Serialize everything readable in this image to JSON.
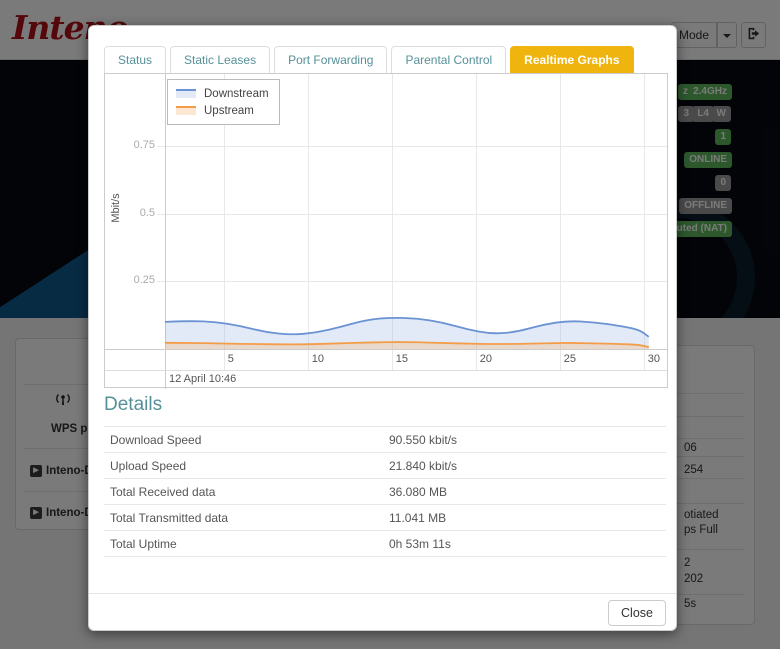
{
  "header": {
    "brand": "Inteno",
    "mode_label": "Mode"
  },
  "hero_badges": {
    "b1": "z",
    "b2": "2.4GHz",
    "b3": "3",
    "b4": "L4",
    "b5": "W",
    "b6": "1",
    "b7": "ONLINE",
    "b8": "0",
    "b9": "OFFLINE",
    "b10": "uted (NAT)"
  },
  "left_panel": {
    "wps_label": "WPS pin:",
    "ssid1": "Inteno-D1",
    "ssid2": "Inteno-D1"
  },
  "right_panel": {
    "r1": "06",
    "r2": "254",
    "r3": "otiated",
    "r4": "ps Full",
    "r5": "2",
    "r6": "202",
    "r7": "5s"
  },
  "modal": {
    "tabs": [
      {
        "label": "Status"
      },
      {
        "label": "Static Leases"
      },
      {
        "label": "Port Forwarding"
      },
      {
        "label": "Parental Control"
      },
      {
        "label": "Realtime Graphs"
      }
    ],
    "active_tab": "Realtime Graphs",
    "details": {
      "heading": "Details",
      "rows": [
        {
          "label": "Download Speed",
          "value": "90.550 kbit/s"
        },
        {
          "label": "Upload Speed",
          "value": "21.840 kbit/s"
        },
        {
          "label": "Total Received data",
          "value": "36.080 MB"
        },
        {
          "label": "Total Transmitted data",
          "value": "11.041 MB"
        },
        {
          "label": "Total Uptime",
          "value": "0h 53m 11s"
        }
      ]
    },
    "close_label": "Close"
  },
  "chart_data": {
    "type": "area",
    "title": "",
    "xlabel": "",
    "ylabel": "Mbit/s",
    "footnote": "12 April 10:46",
    "legend_position": "top-left",
    "grid": true,
    "x_ticks": [
      5,
      10,
      15,
      20,
      25,
      30
    ],
    "y_ticks": [
      0.25,
      0.5,
      0.75
    ],
    "xlim": [
      1.5,
      31.5
    ],
    "ylim": [
      0,
      1.015
    ],
    "x": [
      1.5,
      3,
      4.5,
      6,
      7.5,
      9,
      10.5,
      12,
      13.5,
      15,
      16.5,
      18,
      19.5,
      21,
      22.5,
      24,
      25.5,
      27,
      28.5,
      29.7,
      30.3
    ],
    "series": [
      {
        "name": "Downstream",
        "color": "#6b93d3",
        "fill": "rgba(150,180,225,0.28)",
        "values": [
          0.1,
          0.104,
          0.1,
          0.085,
          0.062,
          0.052,
          0.06,
          0.082,
          0.108,
          0.116,
          0.113,
          0.098,
          0.072,
          0.055,
          0.064,
          0.09,
          0.104,
          0.099,
          0.086,
          0.072,
          0.045
        ]
      },
      {
        "name": "Upstream",
        "color": "#f49d49",
        "fill": "rgba(246,178,107,0.30)",
        "values": [
          0.023,
          0.022,
          0.021,
          0.019,
          0.018,
          0.017,
          0.018,
          0.021,
          0.024,
          0.026,
          0.025,
          0.022,
          0.02,
          0.018,
          0.019,
          0.021,
          0.023,
          0.021,
          0.019,
          0.016,
          0.007
        ]
      }
    ]
  },
  "colors": {
    "brand_red": "#b01218",
    "active_tab_yellow": "#f0b40e",
    "heading_teal": "#569099",
    "badge_green": "#5cb85c",
    "badge_grey": "#9b9b9b",
    "downstream_blue": "#6b93d3",
    "upstream_orange": "#f49d49"
  }
}
